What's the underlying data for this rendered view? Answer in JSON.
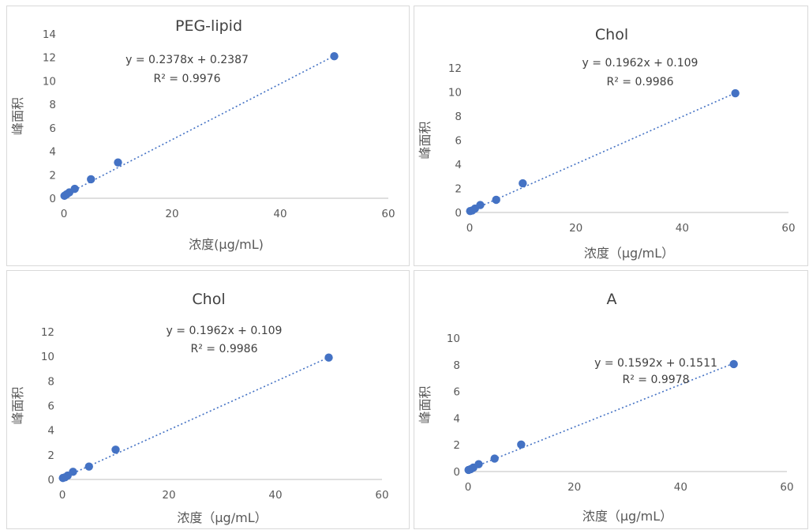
{
  "chart_data": [
    {
      "type": "scatter",
      "title": "PEG-lipid",
      "xlabel": "浓度(μg/mL)",
      "ylabel": "峰面积",
      "xlim": [
        0,
        60
      ],
      "ylim": [
        0,
        14
      ],
      "x_ticks": [
        0,
        20,
        40,
        60
      ],
      "y_ticks": [
        0,
        2,
        4,
        6,
        8,
        10,
        12,
        14
      ],
      "x_tick_labels": [
        "0",
        "20",
        "40",
        "60"
      ],
      "y_tick_labels": [
        "0",
        "2",
        "4",
        "6",
        "8",
        "10",
        "12",
        "14"
      ],
      "x": [
        0.1,
        0.5,
        1,
        2,
        5,
        10,
        50
      ],
      "y": [
        0.21,
        0.34,
        0.5,
        0.8,
        1.62,
        3.05,
        12.1
      ],
      "trendline": {
        "slope": 0.2378,
        "intercept": 0.2387
      },
      "equation": "y = 0.2378x + 0.2387",
      "r2": "R² = 0.9976",
      "grid": false,
      "legend": "none",
      "color": "#4472c4"
    },
    {
      "type": "scatter",
      "title": "Chol",
      "xlabel": "浓度（μg/mL）",
      "ylabel": "峰面积",
      "xlim": [
        0,
        60
      ],
      "ylim": [
        0,
        12
      ],
      "x_ticks": [
        0,
        20,
        40,
        60
      ],
      "y_ticks": [
        0,
        2,
        4,
        6,
        8,
        10,
        12
      ],
      "x_tick_labels": [
        "0",
        "20",
        "40",
        "60"
      ],
      "y_tick_labels": [
        "0",
        "2",
        "4",
        "6",
        "8",
        "10",
        "12"
      ],
      "x": [
        0.1,
        0.5,
        1,
        2,
        5,
        10,
        50
      ],
      "y": [
        0.12,
        0.17,
        0.32,
        0.62,
        1.05,
        2.42,
        9.9
      ],
      "trendline": {
        "slope": 0.1962,
        "intercept": 0.109
      },
      "equation": "y = 0.1962x + 0.109",
      "r2": "R² = 0.9986",
      "grid": false,
      "legend": "none",
      "color": "#4472c4"
    },
    {
      "type": "scatter",
      "title": "Chol",
      "xlabel": "浓度（μg/mL）",
      "ylabel": "峰面积",
      "xlim": [
        0,
        60
      ],
      "ylim": [
        0,
        12
      ],
      "x_ticks": [
        0,
        20,
        40,
        60
      ],
      "y_ticks": [
        0,
        2,
        4,
        6,
        8,
        10,
        12
      ],
      "x_tick_labels": [
        "0",
        "20",
        "40",
        "60"
      ],
      "y_tick_labels": [
        "0",
        "2",
        "4",
        "6",
        "8",
        "10",
        "12"
      ],
      "x": [
        0.1,
        0.5,
        1,
        2,
        5,
        10,
        50
      ],
      "y": [
        0.12,
        0.17,
        0.32,
        0.62,
        1.05,
        2.42,
        9.9
      ],
      "trendline": {
        "slope": 0.1962,
        "intercept": 0.109
      },
      "equation": "y = 0.1962x + 0.109",
      "r2": "R² = 0.9986",
      "grid": false,
      "legend": "none",
      "color": "#4472c4"
    },
    {
      "type": "scatter",
      "title": "A",
      "xlabel": "浓度（μg/mL）",
      "ylabel": "峰面积",
      "xlim": [
        0,
        60
      ],
      "ylim": [
        0,
        10
      ],
      "x_ticks": [
        0,
        20,
        40,
        60
      ],
      "y_ticks": [
        0,
        2,
        4,
        6,
        8,
        10
      ],
      "x_tick_labels": [
        "0",
        "20",
        "40",
        "60"
      ],
      "y_tick_labels": [
        "0",
        "2",
        "4",
        "6",
        "8",
        "10"
      ],
      "x": [
        0.1,
        0.5,
        1,
        2,
        5,
        10,
        50
      ],
      "y": [
        0.12,
        0.18,
        0.3,
        0.55,
        0.97,
        2.02,
        8.05
      ],
      "trendline": {
        "slope": 0.1592,
        "intercept": 0.1511
      },
      "equation": "y = 0.1592x + 0.1511",
      "r2": "R² = 0.9978",
      "grid": false,
      "legend": "none",
      "color": "#4472c4"
    }
  ]
}
